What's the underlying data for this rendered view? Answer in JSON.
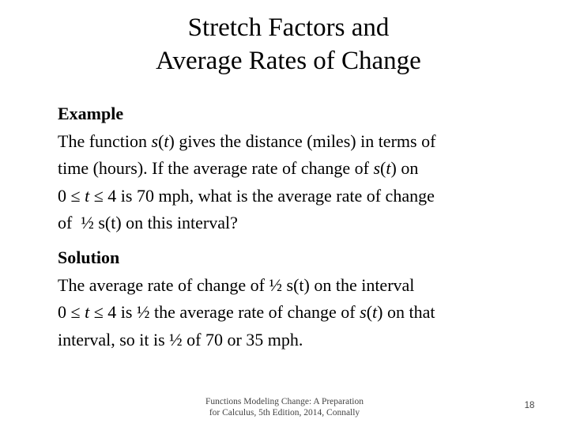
{
  "title": {
    "lines": [
      "Stretch Factors and",
      "Average Rates of Change"
    ]
  },
  "example": {
    "heading": "Example",
    "lines": [
      [
        "The function ",
        "s",
        "(",
        "t",
        ") gives the distance (miles) in terms of"
      ],
      [
        "time (hours). If the average rate of change of ",
        "s",
        "(",
        "t",
        ") on"
      ],
      [
        "0 ≤ ",
        "t",
        " ≤ 4 is 70 mph, what is the average rate of change"
      ],
      [
        "of  ½ s(t) on this interval?"
      ]
    ]
  },
  "solution": {
    "heading": "Solution",
    "lines": [
      [
        "The average rate of change of ½ s(t) on the interval"
      ],
      [
        "0 ≤ ",
        "t",
        " ≤ 4 is ½ the average rate of change of ",
        "s",
        "(",
        "t",
        ") on that"
      ],
      [
        "interval, so it is ½ of 70 or 35 mph."
      ]
    ]
  },
  "footer": {
    "lines": [
      "Functions Modeling Change: A Preparation",
      "for Calculus, 5th Edition, 2014, Connally"
    ],
    "page_number": "18"
  }
}
